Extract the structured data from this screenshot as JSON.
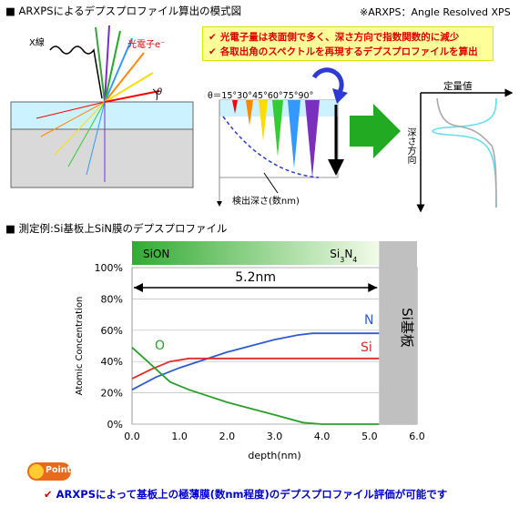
{
  "section1": {
    "title": "■ ARXPSによるデプスプロファイル算出の模式図",
    "arxps_note": "※ARXPS：Angle Resolved XPS",
    "callout_lines": [
      "光電子量は表面側で多く、深さ方向で指数関数的に減少",
      "各取出角のスペクトルを再現するデプスプロファイルを算出"
    ],
    "xray_label": "X線",
    "photoelectron_label": "光電子e⁻",
    "theta_label": "θ",
    "angles_label": "θ＝15°30°45°60°75°90°",
    "depth_label": "検出深さ(数nm)",
    "quant_label": "定量値",
    "depth_axis_label": "深さ方向",
    "colors": {
      "xray": "#000000",
      "surface_layer": "#ccf2ff",
      "substrate": "#d9d9d9",
      "arrow": "#22aa22",
      "cone_colors": [
        "#ff0000",
        "#ff8800",
        "#ffdd00",
        "#33cc33",
        "#3399ff",
        "#7a2fbf"
      ]
    }
  },
  "section2": {
    "title": "■ 測定例:Si基板上SiN膜のデプスプロファイル",
    "bar_left": "SiON",
    "bar_right": "Si3N4",
    "bracket_label": "5.2nm",
    "substrate_label": "Si基板",
    "colors": {
      "N": "#2e5cd1",
      "Si": "#e22a2a",
      "O": "#2aa02a",
      "substrate": "#c0c0c0"
    }
  },
  "chart_data": {
    "type": "line",
    "title": "",
    "xlabel": "depth(nm)",
    "ylabel": "Atomic Concentration",
    "xlim": [
      0.0,
      6.0
    ],
    "ylim": [
      0,
      100
    ],
    "x_ticks": [
      "0.0",
      "1.0",
      "2.0",
      "3.0",
      "4.0",
      "5.0",
      "6.0"
    ],
    "y_ticks": [
      "0%",
      "20%",
      "40%",
      "60%",
      "80%",
      "100%"
    ],
    "grid": true,
    "series": [
      {
        "name": "N",
        "x": [
          0,
          0.5,
          1.0,
          1.5,
          2.0,
          2.5,
          3.0,
          3.5,
          3.8,
          4.2,
          5.2
        ],
        "y": [
          22,
          30,
          36,
          41,
          46,
          50,
          54,
          57,
          58,
          58,
          58
        ]
      },
      {
        "name": "Si",
        "x": [
          0,
          0.4,
          0.8,
          1.2,
          2.0,
          3.0,
          4.0,
          5.2
        ],
        "y": [
          29,
          35,
          40,
          42,
          42,
          42,
          42,
          42
        ]
      },
      {
        "name": "O",
        "x": [
          0,
          0.4,
          0.8,
          1.2,
          2.0,
          3.0,
          3.6,
          4.0,
          5.2
        ],
        "y": [
          49,
          38,
          27,
          22,
          14,
          6,
          1,
          0,
          0
        ]
      }
    ],
    "regions": {
      "film_end": 5.2
    }
  },
  "footer": {
    "point_label": "Point",
    "conclusion": "ARXPSによって基板上の極薄膜(数nm程度)のデプスプロファイル評価が可能です"
  }
}
